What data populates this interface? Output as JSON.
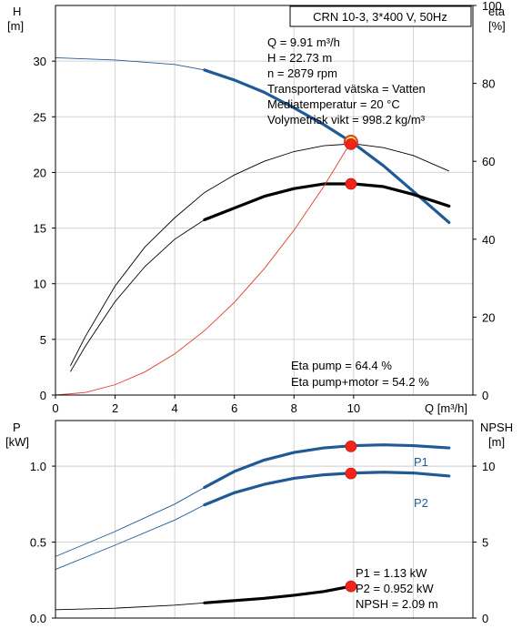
{
  "chart_data": [
    {
      "type": "line",
      "panel": "head-efficiency",
      "title_box": "CRN 10-3, 3*400 V, 50Hz",
      "y_left_label": "H",
      "y_left_unit": "[m]",
      "y_right_label": "eta",
      "y_right_unit": "[%]",
      "x_label": "Q [m³/h]",
      "xlim": [
        0,
        14
      ],
      "ylim_left": [
        0,
        35
      ],
      "ylim_right": [
        0,
        100
      ],
      "x_ticks": [
        "0",
        "2",
        "4",
        "6",
        "8",
        "10"
      ],
      "y_left_ticks": [
        "0",
        "5",
        "10",
        "15",
        "20",
        "25",
        "30"
      ],
      "y_right_ticks": [
        "0",
        "20",
        "40",
        "60",
        "80",
        "100"
      ],
      "info_lines": [
        "Q = 9.91 m³/h",
        "H = 22.73 m",
        "n = 2879 rpm",
        "Transporterad vätska = Vatten",
        "Mediatemperatur = 20 °C",
        "Volymetrisk vikt = 998.2 kg/m³"
      ],
      "eta_lines": [
        "Eta pump = 64.4 %",
        "Eta pump+motor = 54.2 %"
      ],
      "grid": true,
      "series": [
        {
          "role": "head-curve",
          "axis": "left",
          "color": "#1f5a96",
          "x": [
            0,
            2,
            4,
            5,
            6,
            7,
            8,
            9,
            10,
            11,
            12,
            13.2
          ],
          "y": [
            30.3,
            30.1,
            29.7,
            29.2,
            28.3,
            27.2,
            25.8,
            24.3,
            22.6,
            20.6,
            18.3,
            15.5
          ],
          "bold_from": 5
        },
        {
          "role": "eta-pump-curve",
          "axis": "right",
          "color": "#000000",
          "x": [
            0.5,
            1,
            2,
            3,
            4,
            5,
            6,
            7,
            8,
            9,
            10,
            11,
            12,
            13.2
          ],
          "y": [
            7.5,
            15,
            28,
            38,
            45.5,
            52,
            56.5,
            60,
            62.5,
            64,
            64.5,
            63.5,
            61.5,
            57.5
          ],
          "bold_from": 99
        },
        {
          "role": "eta-pump-motor-curve",
          "axis": "right",
          "color": "#000000",
          "x": [
            0.5,
            1,
            2,
            3,
            4,
            5,
            6,
            7,
            8,
            9,
            10,
            11,
            12,
            13.2
          ],
          "y": [
            6,
            12.5,
            24,
            33,
            40,
            45,
            48,
            51,
            53,
            54.2,
            54.2,
            53.5,
            51.5,
            48.5
          ],
          "bold_from": 5
        },
        {
          "role": "system-curve",
          "axis": "left",
          "color": "#e23a2e",
          "x": [
            0,
            1,
            2,
            3,
            4,
            5,
            6,
            7,
            8,
            9,
            9.91
          ],
          "y": [
            0,
            0.23,
            0.93,
            2.08,
            3.7,
            5.79,
            8.33,
            11.34,
            14.81,
            18.75,
            22.73
          ],
          "bold_from": 99
        }
      ],
      "points": [
        {
          "role": "op-head",
          "x": 9.91,
          "y": 22.73,
          "axis": "left",
          "style": "yellow"
        },
        {
          "role": "op-eta-pump",
          "x": 9.91,
          "y": 64.4,
          "axis": "right",
          "style": "red"
        },
        {
          "role": "op-eta-total",
          "x": 9.91,
          "y": 54.2,
          "axis": "right",
          "style": "red"
        }
      ]
    },
    {
      "type": "line",
      "panel": "power-npsh",
      "y_left_label": "P",
      "y_left_unit": "[kW]",
      "y_right_label": "NPSH",
      "y_right_unit": "[m]",
      "xlim": [
        0,
        14
      ],
      "ylim_left": [
        0,
        1.3
      ],
      "ylim_right": [
        0,
        13
      ],
      "y_left_ticks": [
        "0.0",
        "0.5",
        "1.0"
      ],
      "y_right_ticks": [
        "0",
        "5",
        "10"
      ],
      "info_lines": [
        "P1 = 1.13 kW",
        "P2 = 0.952 kW",
        "NPSH = 2.09 m"
      ],
      "grid": true,
      "series": [
        {
          "name": "P1",
          "axis": "left",
          "color": "#1f5a96",
          "x": [
            0,
            2,
            4,
            5,
            6,
            7,
            8,
            9,
            10,
            11,
            12,
            13.2
          ],
          "y": [
            0.405,
            0.57,
            0.75,
            0.86,
            0.965,
            1.04,
            1.09,
            1.12,
            1.135,
            1.14,
            1.135,
            1.12
          ],
          "bold_from": 5
        },
        {
          "name": "P2",
          "axis": "left",
          "color": "#1f5a96",
          "x": [
            0,
            2,
            4,
            5,
            6,
            7,
            8,
            9,
            10,
            11,
            12,
            13.2
          ],
          "y": [
            0.32,
            0.48,
            0.645,
            0.745,
            0.825,
            0.88,
            0.92,
            0.943,
            0.955,
            0.96,
            0.955,
            0.935
          ],
          "bold_from": 5
        },
        {
          "role": "npsh-curve",
          "axis": "right",
          "color": "#000000",
          "x": [
            0,
            2,
            4,
            5,
            6,
            7,
            8,
            9,
            9.91
          ],
          "y": [
            0.55,
            0.65,
            0.85,
            1.0,
            1.15,
            1.3,
            1.5,
            1.75,
            2.09
          ],
          "bold_from": 5
        }
      ],
      "points": [
        {
          "role": "op-p1",
          "x": 9.91,
          "y": 1.13,
          "axis": "left",
          "style": "red"
        },
        {
          "role": "op-p2",
          "x": 9.91,
          "y": 0.952,
          "axis": "left",
          "style": "red"
        },
        {
          "role": "op-npsh",
          "x": 9.91,
          "y": 2.09,
          "axis": "right",
          "style": "red"
        }
      ]
    }
  ]
}
